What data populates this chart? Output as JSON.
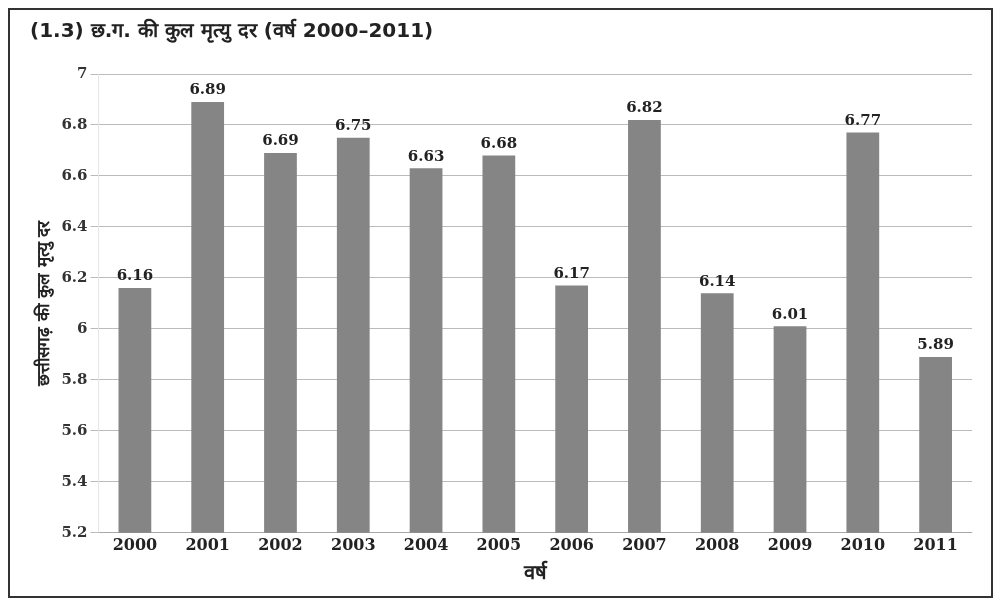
{
  "chart_data": {
    "type": "bar",
    "title": "(1.3) छ.ग. की कुल मृत्यु दर (वर्ष 2000–2011)",
    "xlabel": "वर्ष",
    "ylabel": "छत्तीसगढ़ की कुल मृत्यु दर",
    "categories": [
      "2000",
      "2001",
      "2002",
      "2003",
      "2004",
      "2005",
      "2006",
      "2007",
      "2008",
      "2009",
      "2010",
      "2011"
    ],
    "values": [
      6.16,
      6.89,
      6.69,
      6.75,
      6.63,
      6.68,
      6.17,
      6.82,
      6.14,
      6.01,
      6.77,
      5.89
    ],
    "color": "#858585",
    "ylim": [
      5.2,
      7
    ],
    "yticks": [
      5.2,
      5.4,
      5.6,
      5.8,
      6,
      6.2,
      6.4,
      6.6,
      6.8,
      7
    ],
    "grid": "y",
    "legend": false,
    "data_labels": true
  }
}
